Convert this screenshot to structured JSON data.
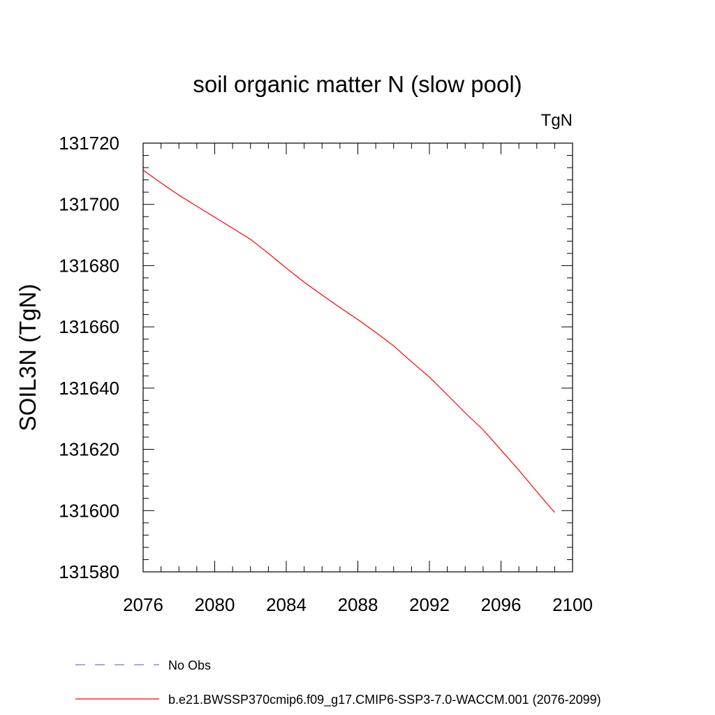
{
  "chart_data": {
    "type": "line",
    "title": "soil organic matter N (slow pool)",
    "units_label": "TgN",
    "ylabel": "SOIL3N  (TgN)",
    "xlabel": "",
    "xlim": [
      2076,
      2100
    ],
    "ylim": [
      131580,
      131720
    ],
    "x_ticks": [
      2076,
      2080,
      2084,
      2088,
      2092,
      2096,
      2100
    ],
    "y_ticks": [
      131580,
      131600,
      131620,
      131640,
      131660,
      131680,
      131700,
      131720
    ],
    "x_minor_step": 1,
    "y_minor_step": 4,
    "grid": false,
    "legend_position": "bottom",
    "series": [
      {
        "name": "No Obs",
        "color": "#7c73c4",
        "dash": "dashed",
        "x": [],
        "y": []
      },
      {
        "name": "b.e21.BWSSP370cmip6.f09_g17.CMIP6-SSP3-7.0-WACCM.001 (2076-2099)",
        "color": "#ff0000",
        "dash": "solid",
        "x": [
          2076,
          2077,
          2078,
          2079,
          2080,
          2081,
          2082,
          2083,
          2084,
          2085,
          2086,
          2087,
          2088,
          2089,
          2090,
          2091,
          2092,
          2093,
          2094,
          2095,
          2096,
          2097,
          2098,
          2099
        ],
        "y": [
          131711.2,
          131707.0,
          131703.0,
          131699.4,
          131695.8,
          131692.2,
          131688.6,
          131684.0,
          131679.2,
          131674.6,
          131670.4,
          131666.3,
          131662.4,
          131658.2,
          131653.8,
          131648.6,
          131643.6,
          131637.8,
          131631.9,
          131626.4,
          131619.8,
          131613.2,
          131606.2,
          131599.4
        ]
      }
    ]
  }
}
